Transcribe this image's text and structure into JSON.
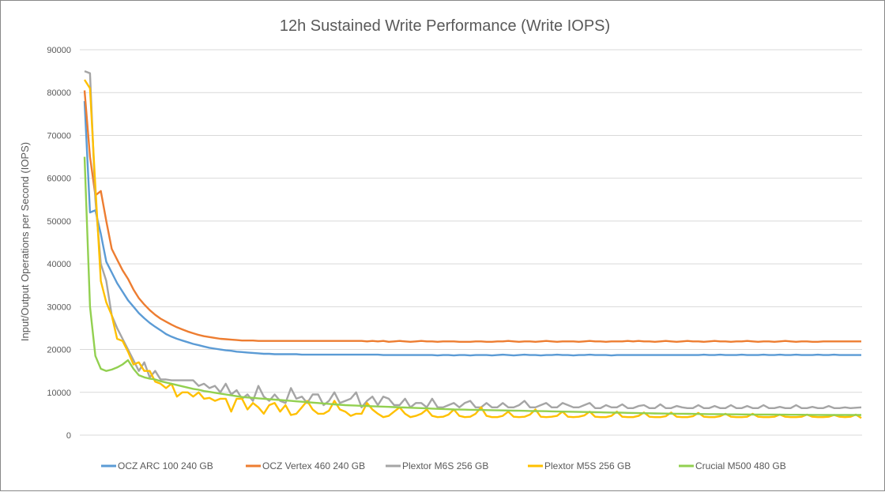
{
  "chart_data": {
    "type": "line",
    "title": "12h Sustained Write Performance (Write IOPS)",
    "xlabel": "",
    "ylabel": "Input/Output Operations per Second (IOPS)",
    "ylim": [
      0,
      90000
    ],
    "yticks": [
      "0",
      "10000",
      "20000",
      "30000",
      "40000",
      "50000",
      "60000",
      "70000",
      "80000",
      "90000"
    ],
    "grid": true,
    "legend": "bottom",
    "series": [
      {
        "name": "OCZ ARC 100 240 GB",
        "color": "#5B9BD5",
        "values": [
          78000,
          52000,
          52500,
          47000,
          40500,
          38000,
          35500,
          33500,
          31500,
          30000,
          28500,
          27300,
          26200,
          25300,
          24500,
          23600,
          23000,
          22500,
          22100,
          21700,
          21300,
          21000,
          20700,
          20400,
          20200,
          20000,
          19800,
          19700,
          19500,
          19400,
          19300,
          19200,
          19100,
          19000,
          19000,
          18900,
          18900,
          18900,
          18900,
          18900,
          18800,
          18800,
          18800,
          18800,
          18800,
          18800,
          18800,
          18800,
          18800,
          18800,
          18800,
          18800,
          18800,
          18800,
          18800,
          18700,
          18700,
          18700,
          18700,
          18700,
          18700,
          18700,
          18700,
          18700,
          18700,
          18600,
          18700,
          18700,
          18600,
          18700,
          18700,
          18600,
          18700,
          18700,
          18700,
          18600,
          18700,
          18800,
          18700,
          18600,
          18700,
          18800,
          18700,
          18700,
          18600,
          18700,
          18700,
          18800,
          18700,
          18700,
          18600,
          18700,
          18700,
          18800,
          18700,
          18700,
          18700,
          18600,
          18700,
          18700,
          18700,
          18700,
          18700,
          18700,
          18700,
          18700,
          18700,
          18700,
          18700,
          18700,
          18700,
          18700,
          18700,
          18700,
          18800,
          18700,
          18700,
          18800,
          18700,
          18700,
          18700,
          18800,
          18700,
          18700,
          18700,
          18800,
          18700,
          18700,
          18800,
          18700,
          18700,
          18800,
          18700,
          18700,
          18700,
          18800,
          18700,
          18700,
          18800,
          18700,
          18700,
          18700,
          18700,
          18700
        ]
      },
      {
        "name": "OCZ Vertex 460 240 GB",
        "color": "#ED7D31",
        "values": [
          80500,
          65000,
          56000,
          57000,
          50000,
          43500,
          41000,
          38500,
          36500,
          34000,
          32000,
          30500,
          29200,
          28100,
          27200,
          26500,
          25800,
          25200,
          24700,
          24200,
          23800,
          23400,
          23100,
          22900,
          22700,
          22500,
          22400,
          22300,
          22200,
          22100,
          22100,
          22100,
          22000,
          22000,
          22000,
          22000,
          22000,
          22000,
          22000,
          22000,
          22000,
          22000,
          22000,
          22000,
          22000,
          22000,
          22000,
          22000,
          22000,
          22000,
          22000,
          22000,
          21900,
          22000,
          21900,
          22000,
          21800,
          21900,
          22000,
          21900,
          21800,
          21900,
          22000,
          21900,
          21900,
          21800,
          21900,
          21900,
          21900,
          21800,
          21800,
          21800,
          21900,
          21900,
          21800,
          21800,
          21900,
          21900,
          22000,
          21900,
          21800,
          21900,
          21900,
          21800,
          21900,
          22000,
          21900,
          21800,
          21900,
          21900,
          21900,
          21800,
          21900,
          22000,
          21900,
          21900,
          21800,
          21900,
          21900,
          21900,
          22000,
          21900,
          22000,
          21900,
          21900,
          21800,
          21900,
          22000,
          21900,
          21800,
          21900,
          22000,
          21900,
          21900,
          21800,
          21900,
          22000,
          21900,
          21900,
          21800,
          21900,
          21900,
          22000,
          21900,
          21800,
          21900,
          21900,
          21800,
          21900,
          22000,
          21900,
          21800,
          21900,
          21900,
          21800,
          21800,
          21900,
          21900,
          21900,
          21900,
          21900,
          21900,
          21900,
          21900
        ]
      },
      {
        "name": "Plextor M6S 256 GB",
        "color": "#A5A5A5",
        "values": [
          85000,
          84500,
          55000,
          40000,
          36000,
          28000,
          25000,
          22500,
          20000,
          17500,
          15000,
          17000,
          13500,
          15000,
          13000,
          13000,
          12800,
          12800,
          12800,
          12800,
          12800,
          11500,
          12000,
          11000,
          11500,
          10000,
          12000,
          9500,
          10500,
          8500,
          9500,
          8000,
          11500,
          9000,
          8000,
          9500,
          8000,
          7500,
          11000,
          8500,
          9000,
          7500,
          9500,
          9500,
          7000,
          8000,
          10000,
          7500,
          8000,
          8500,
          10000,
          6500,
          8000,
          9000,
          7000,
          9000,
          8500,
          7000,
          7000,
          8500,
          6500,
          7500,
          7500,
          6500,
          8500,
          6500,
          6500,
          7000,
          7500,
          6500,
          7500,
          8000,
          6500,
          6500,
          7500,
          6500,
          6500,
          7500,
          6500,
          6500,
          7000,
          8000,
          6500,
          6500,
          7000,
          7500,
          6500,
          6500,
          7500,
          7000,
          6500,
          6500,
          7000,
          7500,
          6300,
          6300,
          7000,
          6500,
          6500,
          7200,
          6300,
          6300,
          6800,
          7000,
          6300,
          6300,
          7200,
          6300,
          6300,
          6800,
          6500,
          6300,
          6300,
          7000,
          6300,
          6300,
          6800,
          6300,
          6300,
          7000,
          6300,
          6300,
          6800,
          6300,
          6300,
          7000,
          6300,
          6300,
          6600,
          6300,
          6300,
          7000,
          6300,
          6300,
          6600,
          6300,
          6300,
          6800,
          6300,
          6300,
          6500,
          6300,
          6400,
          6500
        ]
      },
      {
        "name": "Plextor M5S 256 GB",
        "color": "#FFC000",
        "values": [
          83000,
          81000,
          58000,
          36000,
          31000,
          28000,
          22500,
          22000,
          19500,
          16500,
          17000,
          15000,
          15000,
          12500,
          12000,
          11000,
          12000,
          9000,
          10000,
          10000,
          9000,
          10000,
          8500,
          8700,
          8000,
          8500,
          8500,
          5500,
          8500,
          8500,
          6000,
          7500,
          6500,
          5000,
          7000,
          7500,
          5500,
          7000,
          4700,
          5000,
          6500,
          8000,
          6000,
          5000,
          5000,
          5700,
          8000,
          6000,
          5500,
          4500,
          5000,
          5000,
          7500,
          6000,
          5000,
          4200,
          4500,
          5500,
          6500,
          5000,
          4200,
          4500,
          5000,
          6000,
          4500,
          4200,
          4300,
          4800,
          6000,
          4500,
          4200,
          4300,
          5000,
          6500,
          4500,
          4200,
          4200,
          4500,
          5500,
          4300,
          4200,
          4300,
          4800,
          6000,
          4300,
          4200,
          4300,
          4500,
          5500,
          4300,
          4200,
          4300,
          4600,
          5500,
          4300,
          4200,
          4200,
          4500,
          5500,
          4300,
          4200,
          4200,
          4500,
          5300,
          4300,
          4200,
          4200,
          4400,
          5300,
          4300,
          4200,
          4200,
          4400,
          5200,
          4300,
          4200,
          4200,
          4400,
          5000,
          4300,
          4200,
          4200,
          4300,
          5000,
          4300,
          4200,
          4200,
          4300,
          4800,
          4300,
          4200,
          4200,
          4300,
          4800,
          4300,
          4200,
          4200,
          4300,
          4700,
          4300,
          4200,
          4300,
          4800,
          4000
        ]
      },
      {
        "name": "Crucial M500 480 GB",
        "color": "#92D050",
        "values": [
          65000,
          30000,
          18500,
          15500,
          15000,
          15300,
          15800,
          16500,
          17500,
          15500,
          14000,
          13500,
          13200,
          13000,
          12600,
          12300,
          12000,
          11700,
          11400,
          11100,
          10800,
          10600,
          10300,
          10100,
          9900,
          9700,
          9500,
          9300,
          9100,
          8900,
          8800,
          8700,
          8600,
          8500,
          8400,
          8300,
          8200,
          8100,
          8000,
          7900,
          7800,
          7700,
          7600,
          7500,
          7400,
          7300,
          7200,
          7100,
          7000,
          6950,
          6900,
          6850,
          6800,
          6750,
          6700,
          6650,
          6600,
          6550,
          6500,
          6450,
          6400,
          6350,
          6300,
          6250,
          6200,
          6150,
          6100,
          6050,
          6000,
          5980,
          5950,
          5920,
          5900,
          5880,
          5850,
          5820,
          5800,
          5780,
          5750,
          5720,
          5700,
          5680,
          5650,
          5620,
          5600,
          5580,
          5550,
          5520,
          5500,
          5480,
          5450,
          5420,
          5400,
          5380,
          5350,
          5330,
          5300,
          5280,
          5250,
          5230,
          5200,
          5180,
          5150,
          5130,
          5100,
          5080,
          5060,
          5040,
          5020,
          5000,
          5000,
          4980,
          4960,
          4940,
          4920,
          4900,
          4900,
          4880,
          4860,
          4850,
          4850,
          4840,
          4830,
          4820,
          4810,
          4800,
          4800,
          4790,
          4780,
          4770,
          4760,
          4750,
          4750,
          4740,
          4730,
          4720,
          4710,
          4700,
          4700,
          4700,
          4700,
          4700,
          4700,
          4700
        ]
      }
    ]
  }
}
